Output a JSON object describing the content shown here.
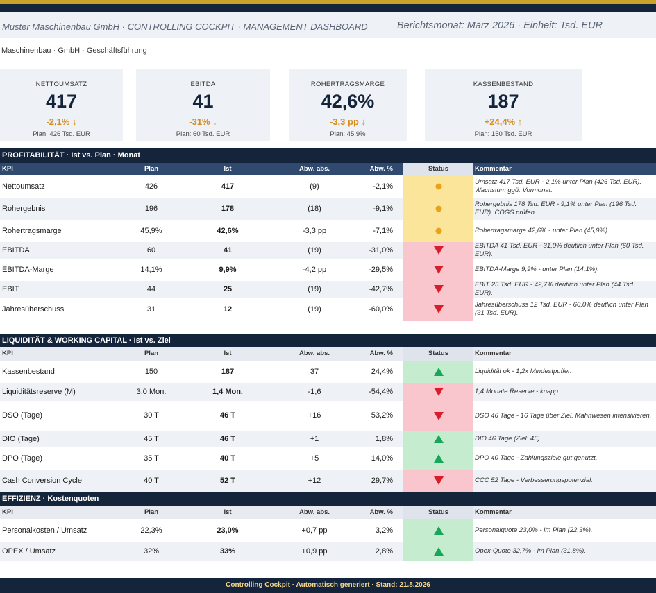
{
  "header": {
    "title_left": "Muster Maschinenbau GmbH  ·  CONTROLLING COCKPIT  ·  MANAGEMENT DASHBOARD",
    "title_right": "Berichtsmonat: März 2026  ·  Einheit: Tsd. EUR",
    "company": "Maschinenbau  ·  GmbH  ·  Geschäftsführung"
  },
  "colors": {
    "navy": "#14243a",
    "gold": "#c9a227",
    "yellow": "#fbe59b",
    "red": "#f8c6cc",
    "green": "#c6ecd0"
  },
  "kpi_cards": [
    {
      "label": "NETTOUMSATZ",
      "value": "417",
      "delta": "-2,1% ↓",
      "plan": "Plan: 426 Tsd. EUR"
    },
    {
      "label": "EBITDA",
      "value": "41",
      "delta": "-31% ↓",
      "plan": "Plan: 60 Tsd. EUR"
    },
    {
      "label": "ROHERTRAGSMARGE",
      "value": "42,6%",
      "delta": "-3,3 pp ↓",
      "plan": "Plan: 45,9%"
    },
    {
      "label": "KASSENBESTAND",
      "value": "187",
      "delta": "+24,4% ↑",
      "plan": "Plan: 150 Tsd. EUR"
    }
  ],
  "columns": {
    "kpi": "KPI",
    "plan": "Plan",
    "ist": "Ist",
    "abs": "Abw. abs.",
    "pct": "Abw. %",
    "status": "Status",
    "comment": "Kommentar"
  },
  "sections": {
    "profit": {
      "title": "PROFITABILITÄT  ·  Ist vs. Plan  ·  Monat",
      "rows": [
        {
          "kpi": "Nettoumsatz",
          "plan": "426",
          "ist": "417",
          "abs": "(9)",
          "pct": "-2,1%",
          "status": "yellow",
          "icon": "warning-dot-icon",
          "comment": "Umsatz 417 Tsd. EUR - 2,1% unter Plan (426 Tsd. EUR). Wachstum ggü. Vormonat."
        },
        {
          "kpi": "Rohergebnis",
          "plan": "196",
          "ist": "178",
          "abs": "(18)",
          "pct": "-9,1%",
          "status": "yellow",
          "icon": "warning-dot-icon",
          "comment": "Rohergebnis 178 Tsd. EUR - 9,1% unter Plan (196 Tsd. EUR). COGS prüfen."
        },
        {
          "kpi": "Rohertragsmarge",
          "plan": "45,9%",
          "ist": "42,6%",
          "abs": "-3,3 pp",
          "pct": "-7,1%",
          "status": "yellow",
          "icon": "warning-dot-icon",
          "comment": "Rohertragsmarge 42,6% - unter Plan (45,9%)."
        },
        {
          "kpi": "EBITDA",
          "plan": "60",
          "ist": "41",
          "abs": "(19)",
          "pct": "-31,0%",
          "status": "red",
          "icon": "down-triangle-icon",
          "comment": "EBITDA 41 Tsd. EUR - 31,0% deutlich unter Plan (60 Tsd. EUR)."
        },
        {
          "kpi": "EBITDA-Marge",
          "plan": "14,1%",
          "ist": "9,9%",
          "abs": "-4,2 pp",
          "pct": "-29,5%",
          "status": "red",
          "icon": "down-triangle-icon",
          "comment": "EBITDA-Marge 9,9% - unter Plan (14,1%)."
        },
        {
          "kpi": "EBIT",
          "plan": "44",
          "ist": "25",
          "abs": "(19)",
          "pct": "-42,7%",
          "status": "red",
          "icon": "down-triangle-icon",
          "comment": "EBIT 25 Tsd. EUR - 42,7% deutlich unter Plan (44 Tsd. EUR)."
        },
        {
          "kpi": "Jahresüberschuss",
          "plan": "31",
          "ist": "12",
          "abs": "(19)",
          "pct": "-60,0%",
          "status": "red",
          "icon": "down-triangle-icon",
          "comment": "Jahresüberschuss 12 Tsd. EUR - 60,0% deutlich unter Plan (31 Tsd. EUR)."
        }
      ]
    },
    "liquidity": {
      "title": "LIQUIDITÄT & WORKING CAPITAL  ·  Ist vs. Ziel",
      "rows": [
        {
          "kpi": "Kassenbestand",
          "plan": "150",
          "ist": "187",
          "abs": "37",
          "pct": "24,4%",
          "status": "green",
          "icon": "up-triangle-icon",
          "comment": "Liquidität ok - 1,2x Mindestpuffer."
        },
        {
          "kpi": "Liquiditätsreserve (M)",
          "plan": "3,0 Mon.",
          "ist": "1,4 Mon.",
          "abs": "-1,6",
          "pct": "-54,4%",
          "status": "red",
          "icon": "down-triangle-icon",
          "comment": "1,4 Monate Reserve - knapp."
        },
        {
          "kpi": "DSO (Tage)",
          "plan": "30 T",
          "ist": "46 T",
          "abs": "+16",
          "pct": "53,2%",
          "status": "red",
          "icon": "down-triangle-icon",
          "comment": "DSO 46 Tage - 16 Tage über Ziel. Mahnwesen intensivieren."
        },
        {
          "kpi": "DIO (Tage)",
          "plan": "45 T",
          "ist": "46 T",
          "abs": "+1",
          "pct": "1,8%",
          "status": "green",
          "icon": "up-triangle-icon",
          "comment": "DIO 46 Tage (Ziel: 45)."
        },
        {
          "kpi": "DPO (Tage)",
          "plan": "35 T",
          "ist": "40 T",
          "abs": "+5",
          "pct": "14,0%",
          "status": "green",
          "icon": "up-triangle-icon",
          "comment": "DPO 40 Tage - Zahlungsziele gut genutzt."
        },
        {
          "kpi": "Cash Conversion Cycle",
          "plan": "40 T",
          "ist": "52 T",
          "abs": "+12",
          "pct": "29,7%",
          "status": "red",
          "icon": "down-triangle-icon",
          "comment": "CCC 52 Tage - Verbesserungspotenzial."
        }
      ]
    },
    "efficiency": {
      "title": "EFFIZIENZ  ·  Kostenquoten",
      "rows": [
        {
          "kpi": "Personalkosten / Umsatz",
          "plan": "22,3%",
          "ist": "23,0%",
          "abs": "+0,7 pp",
          "pct": "3,2%",
          "status": "green",
          "icon": "up-triangle-icon",
          "comment": "Personalquote 23,0% - im Plan (22,3%)."
        },
        {
          "kpi": "OPEX / Umsatz",
          "plan": "32%",
          "ist": "33%",
          "abs": "+0,9 pp",
          "pct": "2,8%",
          "status": "green",
          "icon": "up-triangle-icon",
          "comment": "Opex-Quote 32,7% - im Plan (31,8%)."
        }
      ]
    }
  },
  "footer": "Controlling Cockpit  ·  Automatisch generiert  ·  Stand: 21.8.2026"
}
